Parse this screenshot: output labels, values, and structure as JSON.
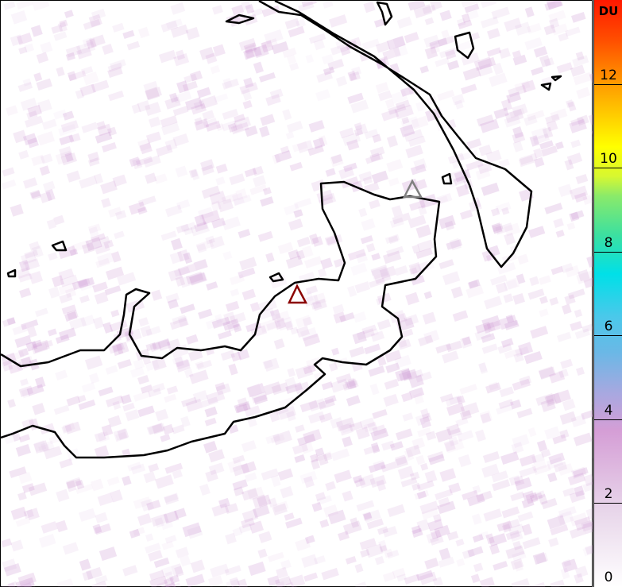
{
  "colorbar": {
    "unit": "DU",
    "ticks": [
      "0",
      "2",
      "4",
      "6",
      "8",
      "10",
      "12"
    ],
    "range": [
      0,
      14
    ],
    "colors": [
      "#ffffff",
      "#d59ed6",
      "#6ab8e6",
      "#00e0e8",
      "#8aea6a",
      "#ffff00",
      "#ff9800",
      "#ff1800"
    ]
  },
  "markers": [
    {
      "name": "volcano-marker-active",
      "color": "#8b0000"
    },
    {
      "name": "volcano-marker-secondary",
      "color": "#808080"
    }
  ],
  "field": {
    "background_level_du": 0.5,
    "speckle_color": "#c98fcf"
  }
}
